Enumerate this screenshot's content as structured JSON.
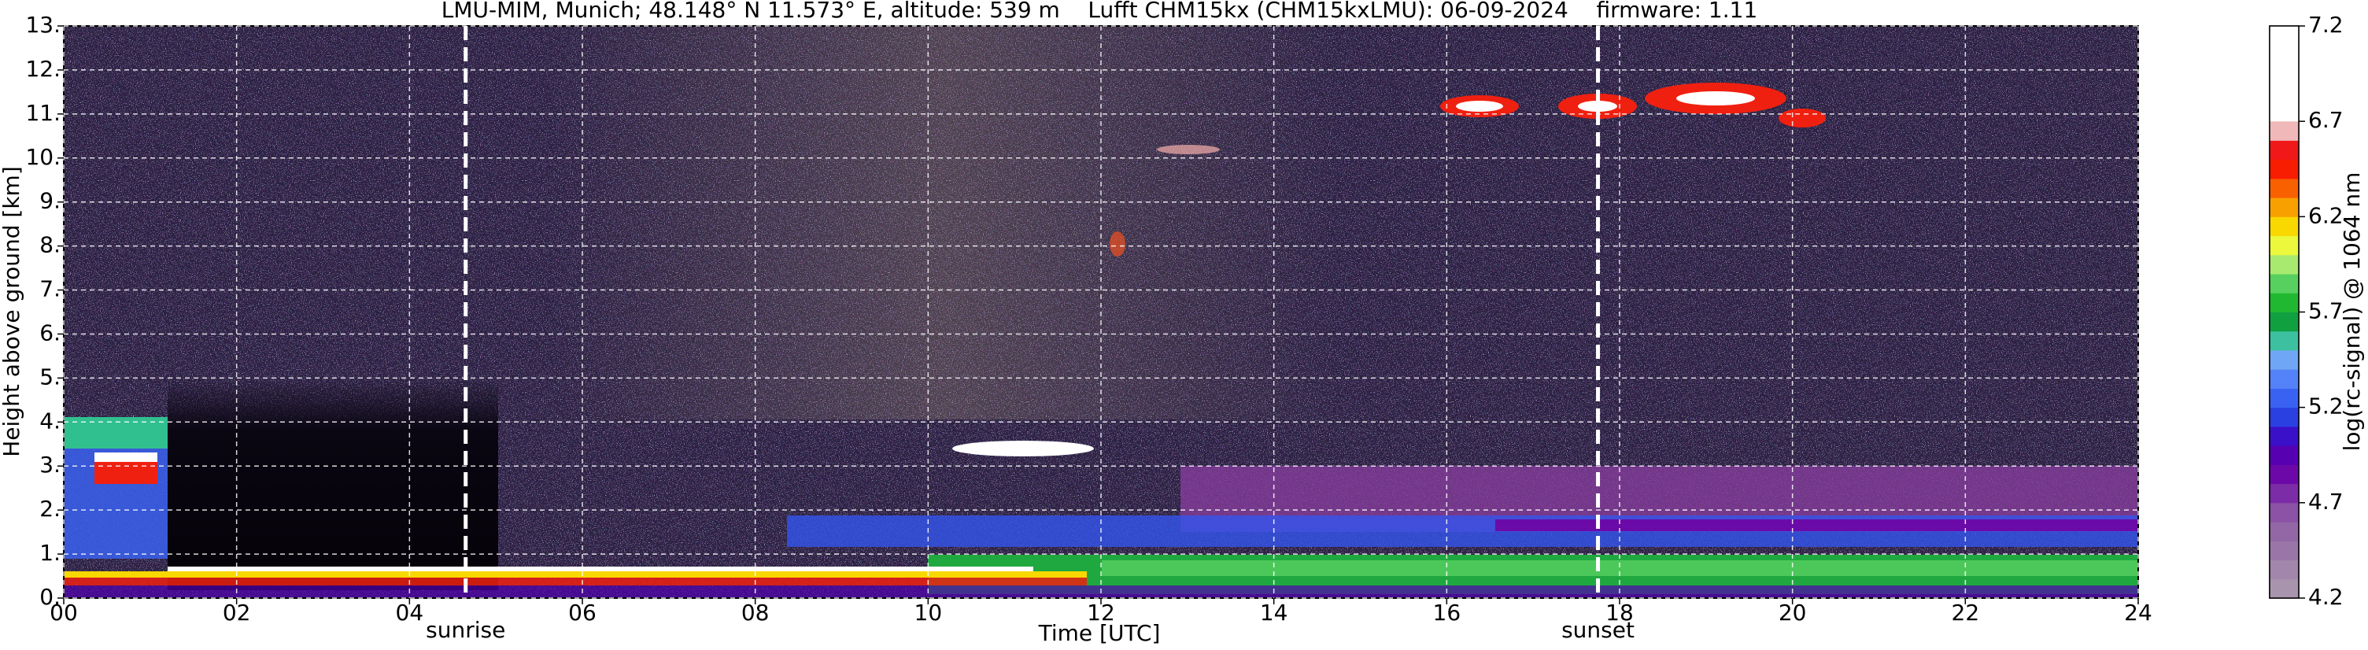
{
  "chart_data": {
    "type": "heatmap",
    "title": "LMU-MIM, Munich; 48.148° N 11.573° E, altitude: 539 m    Lufft CHM15kx (CHM15kxLMU): 06-09-2024    firmware: 1.11",
    "xlabel": "Time [UTC]",
    "ylabel": "Height above ground [km]",
    "xlim": [
      0,
      24
    ],
    "xticks": [
      {
        "value": 0,
        "label": "00"
      },
      {
        "value": 2,
        "label": "02"
      },
      {
        "value": 4,
        "label": "04"
      },
      {
        "value": 6,
        "label": "06"
      },
      {
        "value": 8,
        "label": "08"
      },
      10,
      12,
      14,
      16,
      18,
      20,
      22,
      24
    ],
    "ylim": [
      0,
      13
    ],
    "yticks": [
      {
        "value": 0,
        "label": "0."
      },
      {
        "value": 1,
        "label": "1."
      },
      {
        "value": 2,
        "label": "2."
      },
      {
        "value": 3,
        "label": "3."
      },
      {
        "value": 4,
        "label": "4."
      },
      {
        "value": 5,
        "label": "5."
      },
      {
        "value": 6,
        "label": "6."
      },
      {
        "value": 7,
        "label": "7."
      },
      {
        "value": 8,
        "label": "8."
      },
      {
        "value": 9,
        "label": "9."
      },
      {
        "value": 10,
        "label": "10."
      },
      {
        "value": 11,
        "label": "11."
      },
      {
        "value": 12,
        "label": "12."
      },
      {
        "value": 13,
        "label": "13."
      }
    ],
    "grid": true,
    "annotations": [
      {
        "text": "sunrise",
        "x": 4.65
      },
      {
        "text": "sunset",
        "x": 17.75
      }
    ],
    "colorbar": {
      "label": "log(rc-signal) @ 1064 nm",
      "lim": [
        4.2,
        7.2
      ],
      "ticks": [
        4.2,
        4.7,
        5.2,
        5.7,
        6.2,
        6.7,
        7.2
      ],
      "color_range": [
        4.2,
        6.7
      ],
      "above_color": "#ffffff",
      "colors": [
        "#a994ad",
        "#a286ab",
        "#9a76a8",
        "#9366a6",
        "#8b52a6",
        "#7c2ca6",
        "#6c08a8",
        "#5600b2",
        "#3a10c8",
        "#2a40e0",
        "#3a62f2",
        "#5482f8",
        "#70a6f6",
        "#3cc0a0",
        "#10a040",
        "#20b830",
        "#58d060",
        "#a8ea70",
        "#ecf83c",
        "#f8d800",
        "#f8a000",
        "#f86000",
        "#f81c00",
        "#f01818",
        "#f0b8b8"
      ]
    }
  }
}
